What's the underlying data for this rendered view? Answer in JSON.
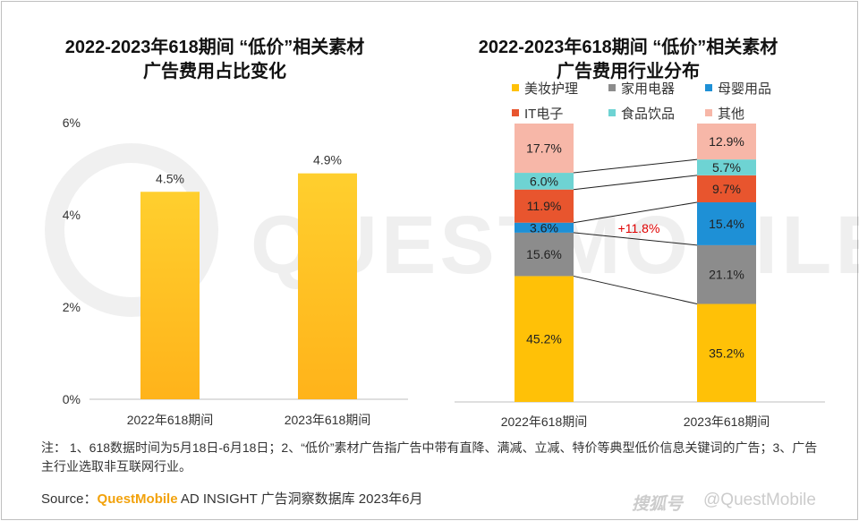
{
  "chart_data": [
    {
      "type": "bar",
      "title": "2022-2023年618期间 “低价”相关素材\n广告费用占比变化",
      "categories": [
        "2022年618期间",
        "2023年618期间"
      ],
      "values": [
        4.5,
        4.9
      ],
      "value_labels": [
        "4.5%",
        "4.9%"
      ],
      "yticks": [
        "0%",
        "2%",
        "4%",
        "6%"
      ],
      "ylim": [
        0,
        6
      ],
      "bar_color": "#ffc107"
    },
    {
      "type": "bar",
      "stacked": true,
      "percent": true,
      "title": "2022-2023年618期间 “低价”相关素材\n广告费用行业分布",
      "categories": [
        "2022年618期间",
        "2023年618期间"
      ],
      "series": [
        {
          "name": "美妆护理",
          "color": "#ffc107",
          "values": [
            45.2,
            35.2
          ],
          "labels": [
            "45.2%",
            "35.2%"
          ]
        },
        {
          "name": "家用电器",
          "color": "#8c8c8c",
          "values": [
            15.6,
            21.1
          ],
          "labels": [
            "15.6%",
            "21.1%"
          ]
        },
        {
          "name": "母婴用品",
          "color": "#1e90d6",
          "values": [
            3.6,
            15.4
          ],
          "labels": [
            "3.6%",
            "15.4%"
          ]
        },
        {
          "name": "IT电子",
          "color": "#e8552e",
          "values": [
            11.9,
            9.7
          ],
          "labels": [
            "11.9%",
            "9.7%"
          ]
        },
        {
          "name": "食品饮品",
          "color": "#6ed3d3",
          "values": [
            6.0,
            5.7
          ],
          "labels": [
            "6.0%",
            "5.7%"
          ]
        },
        {
          "name": "其他",
          "color": "#f7b7a8",
          "values": [
            17.7,
            12.9
          ],
          "labels": [
            "17.7%",
            "12.9%"
          ]
        }
      ],
      "annotation": "+11.8%",
      "annotation_color": "#e00000",
      "legend": "top"
    }
  ],
  "watermark": "QUESTMOBILE",
  "note": "注：  1、618数据时间为5月18日-6月18日；2、“低价”素材广告指广告中带有直降、满减、立减、特价等典型低价信息关键词的广告；3、广告主行业选取非互联网行业。",
  "source": {
    "prefix": "Source：",
    "brand": "QuestMobile",
    "rest": " AD INSIGHT 广告洞察数据库 2023年6月"
  },
  "footer": {
    "logo": "搜狐号",
    "handle": "@QuestMobile"
  }
}
